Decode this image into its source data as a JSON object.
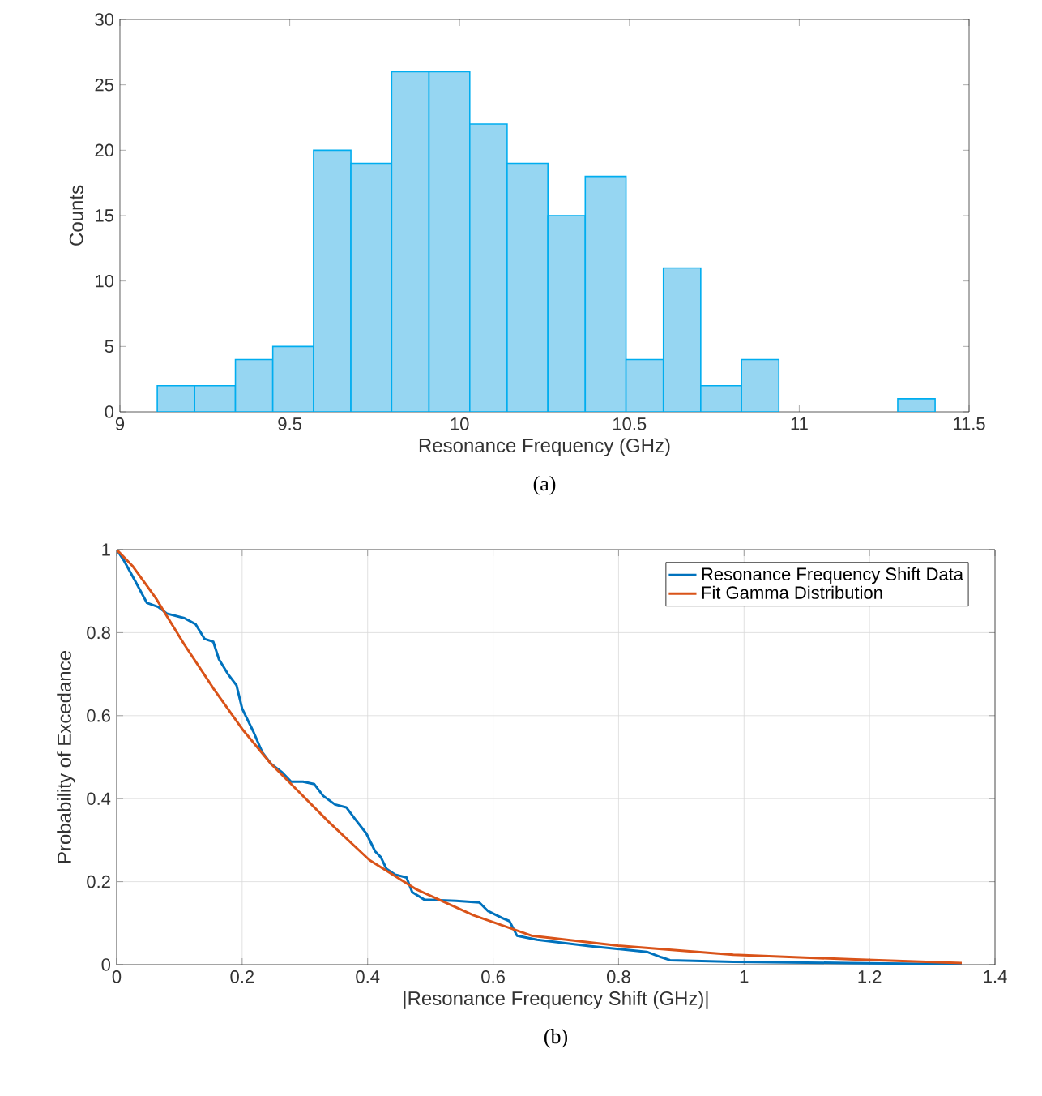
{
  "chart_data": [
    {
      "type": "histogram",
      "xlabel": "Resonance Frequency (GHz)",
      "ylabel": "Counts",
      "annotations": [
        "(a)"
      ],
      "bins": [
        9.11,
        9.22,
        9.34,
        9.45,
        9.57,
        9.68,
        9.8,
        9.91,
        10.03,
        10.14,
        10.26,
        10.37,
        10.49,
        10.6,
        10.71,
        10.83,
        10.94,
        11.29,
        11.4
      ],
      "values": [
        2,
        2,
        4,
        5,
        20,
        19,
        26,
        26,
        22,
        19,
        15,
        18,
        4,
        11,
        2,
        4,
        0,
        1
      ],
      "color": "#96d6f2",
      "xlim": [
        9,
        11.5
      ],
      "xticks": [
        9,
        9.5,
        10,
        10.5,
        11,
        11.5
      ],
      "ylim": [
        0,
        30
      ],
      "yticks": [
        0,
        5,
        10,
        15,
        20,
        25,
        30
      ],
      "grid": false
    },
    {
      "type": "line",
      "xlabel": "|Resonance Frequency Shift (GHz)|",
      "ylabel": "Probability of Excedance",
      "annotations": [
        "(b)"
      ],
      "xlim": [
        0,
        1.4
      ],
      "xticks": [
        0,
        0.2,
        0.4,
        0.6,
        0.8,
        1,
        1.2,
        1.4
      ],
      "ylim": [
        0,
        1
      ],
      "yticks": [
        0,
        0.2,
        0.4,
        0.6,
        0.8,
        1
      ],
      "grid": true,
      "legend": "top right",
      "series": [
        {
          "name": "Resonance Frequency Shift Data",
          "color": "#0072bd",
          "x": [
            0,
            0.011,
            0.029,
            0.048,
            0.066,
            0.08,
            0.108,
            0.126,
            0.14,
            0.154,
            0.163,
            0.177,
            0.191,
            0.2,
            0.218,
            0.232,
            0.246,
            0.264,
            0.278,
            0.297,
            0.315,
            0.329,
            0.348,
            0.366,
            0.38,
            0.398,
            0.412,
            0.421,
            0.43,
            0.444,
            0.462,
            0.471,
            0.49,
            0.541,
            0.578,
            0.592,
            0.615,
            0.626,
            0.638,
            0.67,
            0.753,
            0.845,
            0.868,
            0.882,
            0.983,
            1.168,
            1.347
          ],
          "values": [
            1,
            0.975,
            0.926,
            0.872,
            0.862,
            0.846,
            0.835,
            0.82,
            0.785,
            0.778,
            0.736,
            0.701,
            0.673,
            0.617,
            0.561,
            0.512,
            0.484,
            0.463,
            0.441,
            0.441,
            0.435,
            0.407,
            0.386,
            0.379,
            0.351,
            0.316,
            0.273,
            0.259,
            0.231,
            0.217,
            0.21,
            0.175,
            0.157,
            0.154,
            0.15,
            0.129,
            0.112,
            0.105,
            0.07,
            0.06,
            0.045,
            0.031,
            0.018,
            0.011,
            0.007,
            0.004,
            0.001
          ]
        },
        {
          "name": "Fit Gamma Distribution",
          "color": "#d95319",
          "x": [
            0,
            0.025,
            0.062,
            0.108,
            0.154,
            0.2,
            0.246,
            0.292,
            0.338,
            0.403,
            0.477,
            0.569,
            0.661,
            0.799,
            0.983,
            1.168,
            1.347
          ],
          "values": [
            1,
            0.961,
            0.884,
            0.771,
            0.666,
            0.568,
            0.484,
            0.414,
            0.344,
            0.252,
            0.182,
            0.119,
            0.07,
            0.046,
            0.024,
            0.013,
            0.004
          ]
        }
      ]
    }
  ]
}
